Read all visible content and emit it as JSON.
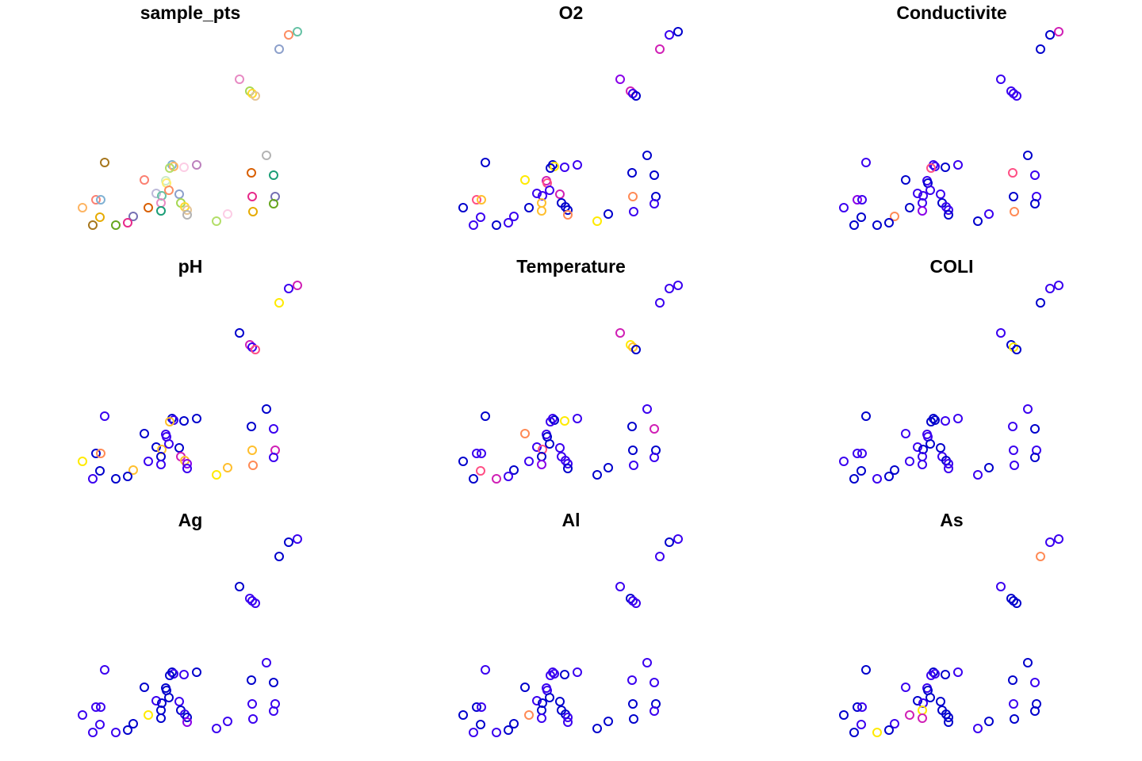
{
  "chart_data": [
    {
      "type": "scatter",
      "title": "sample_pts",
      "marker": "open-circle",
      "coloring": "distinct color per point",
      "grid": false,
      "legend": "none"
    },
    {
      "type": "scatter",
      "title": "O2",
      "marker": "open-circle",
      "coloring": "value color scale (blue-magenta-yellow)",
      "grid": false,
      "legend": "none"
    },
    {
      "type": "scatter",
      "title": "Conductivite",
      "marker": "open-circle",
      "coloring": "value color scale (blue-magenta-yellow)",
      "grid": false,
      "legend": "none"
    },
    {
      "type": "scatter",
      "title": "pH",
      "marker": "open-circle",
      "coloring": "value color scale (blue-magenta-yellow)",
      "grid": false,
      "legend": "none"
    },
    {
      "type": "scatter",
      "title": "Temperature",
      "marker": "open-circle",
      "coloring": "value color scale (blue-magenta-yellow)",
      "grid": false,
      "legend": "none"
    },
    {
      "type": "scatter",
      "title": "COLI",
      "marker": "open-circle",
      "coloring": "value color scale (blue-magenta-yellow)",
      "grid": false,
      "legend": "none"
    },
    {
      "type": "scatter",
      "title": "Ag",
      "marker": "open-circle",
      "coloring": "value color scale (blue-magenta-yellow)",
      "grid": false,
      "legend": "none"
    },
    {
      "type": "scatter",
      "title": "Al",
      "marker": "open-circle",
      "coloring": "value color scale (blue-magenta-yellow)",
      "grid": false,
      "legend": "none"
    },
    {
      "type": "scatter",
      "title": "As",
      "marker": "open-circle",
      "coloring": "value color scale (blue-magenta-yellow)",
      "grid": false,
      "legend": "none"
    }
  ]
}
